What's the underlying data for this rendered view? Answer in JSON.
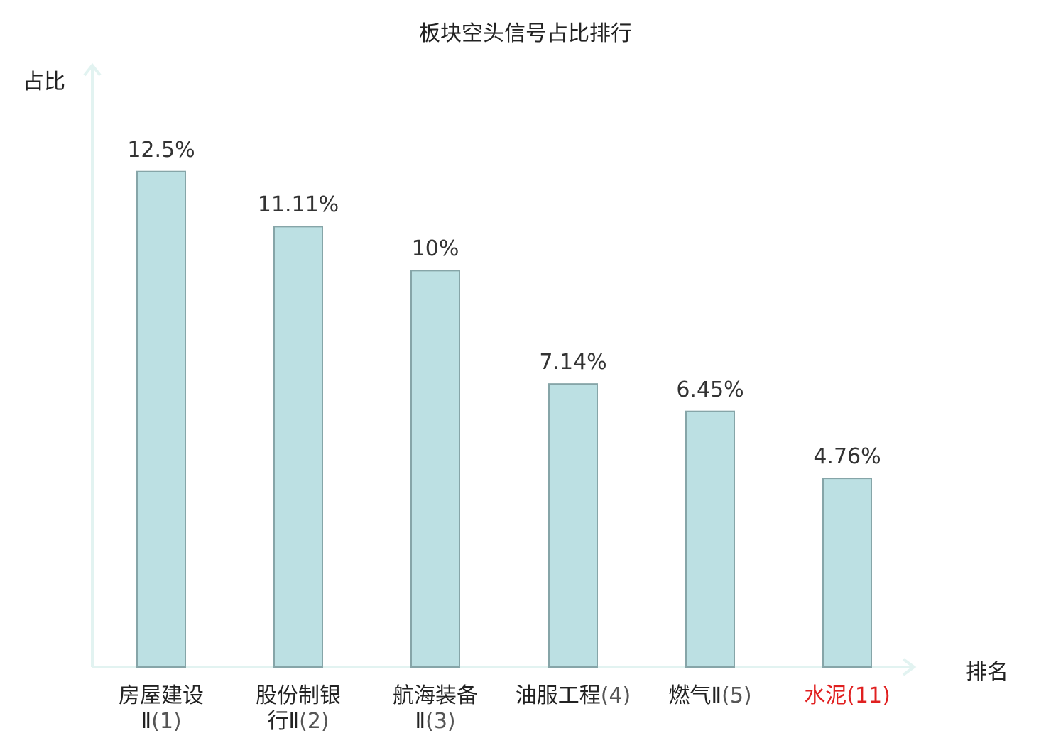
{
  "chart_data": {
    "type": "bar",
    "title": "板块空头信号占比排行",
    "ylabel": "占比",
    "xlabel": "排名",
    "ylim": [
      0,
      14.5
    ],
    "categories": [
      {
        "name": "房屋建设Ⅱ",
        "rank": "(1)",
        "highlight": false
      },
      {
        "name": "股份制银行Ⅱ",
        "rank": "(2)",
        "highlight": false
      },
      {
        "name": "航海装备Ⅱ",
        "rank": "(3)",
        "highlight": false
      },
      {
        "name": "油服工程",
        "rank": "(4)",
        "highlight": false
      },
      {
        "name": "燃气Ⅱ",
        "rank": "(5)",
        "highlight": false
      },
      {
        "name": "水泥",
        "rank": "(11)",
        "highlight": true
      }
    ],
    "values": [
      12.5,
      11.11,
      10,
      7.14,
      6.45,
      4.76
    ],
    "value_labels": [
      "12.5%",
      "11.11%",
      "10%",
      "7.14%",
      "6.45%",
      "4.76%"
    ],
    "grid": false,
    "legend": "none"
  },
  "colors": {
    "bar_fill": "#bce0e3",
    "bar_stroke": "#86a5a8",
    "axis": "#e2f3f1",
    "highlight": "#e02020"
  }
}
